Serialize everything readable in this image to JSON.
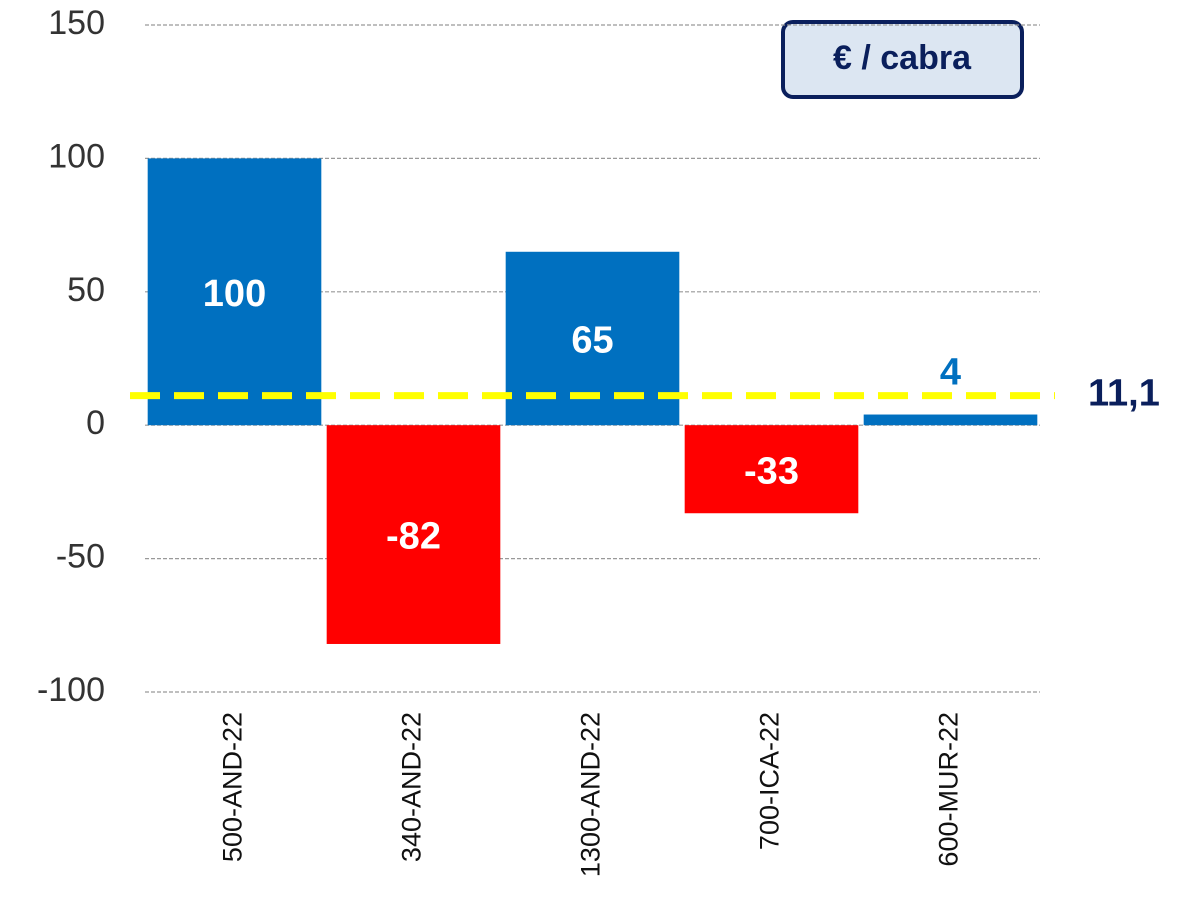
{
  "chart_data": {
    "type": "bar",
    "categories": [
      "500-AND-22",
      "340-AND-22",
      "1300-AND-22",
      "700-ICA-22",
      "600-MUR-22"
    ],
    "values": [
      100,
      -82,
      65,
      -33,
      4
    ],
    "colors": [
      "#0070c0",
      "#ff0000",
      "#0070c0",
      "#ff0000",
      "#0070c0"
    ],
    "ylim": [
      -100,
      150
    ],
    "yticks": [
      -100,
      -50,
      0,
      50,
      100,
      150
    ],
    "grid": true,
    "reference_line": {
      "value": 11.1,
      "label": "11,1",
      "color": "#ffff00"
    },
    "unit_label": "€ / cabra"
  }
}
